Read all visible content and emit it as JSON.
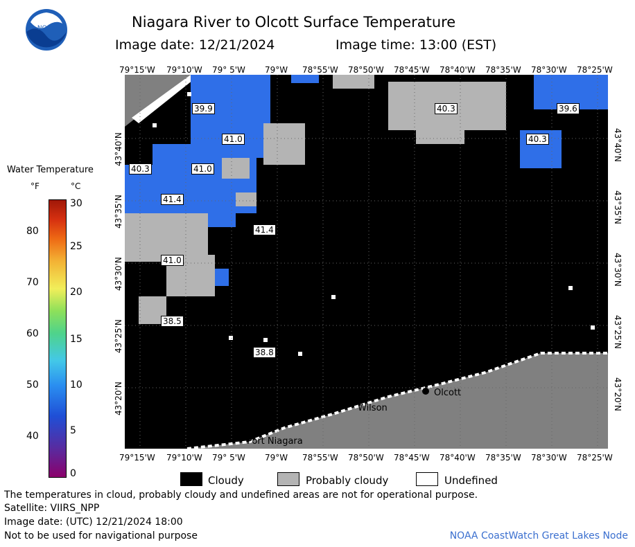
{
  "header": {
    "title": "Niagara River to Olcott Surface Temperature",
    "image_date": "Image date: 12/21/2024",
    "image_time": "Image time: 13:00 (EST)"
  },
  "logo": {
    "text": "NOAA"
  },
  "longitudes": [
    "79°15'W",
    "79°10'W",
    "79° 5'W",
    "79°W",
    "78°55'W",
    "78°50'W",
    "78°45'W",
    "78°40'W",
    "78°35'W",
    "78°30'W",
    "78°25'W"
  ],
  "latitudes": [
    "43°40'N",
    "43°35'N",
    "43°30'N",
    "43°25'N",
    "43°20'N"
  ],
  "legend": {
    "title": "Water Temperature",
    "unit_f": "°F",
    "unit_c": "°C",
    "f_ticks": [
      "80",
      "70",
      "60",
      "50",
      "40"
    ],
    "c_ticks": [
      "30",
      "25",
      "20",
      "15",
      "10",
      "5",
      "0"
    ]
  },
  "temperature_labels": [
    "39.9",
    "41.0",
    "40.3",
    "41.0",
    "41.4",
    "41.4",
    "41.0",
    "38.5",
    "38.8",
    "40.3",
    "40.3",
    "39.6"
  ],
  "places": [
    "Olcott",
    "Wilson",
    "Port Niagara"
  ],
  "key": {
    "cloudy": "Cloudy",
    "probably_cloudy": "Probably cloudy",
    "undefined": "Undefined"
  },
  "footer": {
    "line1": "The temperatures in cloud, probably cloudy and undefined areas are not for operational purpose.",
    "line2": "Satellite: VIIRS_NPP",
    "line3": "Image date: (UTC) 12/21/2024  18:00",
    "line4": "Not to be used for navigational purpose",
    "credit": "NOAA CoastWatch Great Lakes Node"
  },
  "colors": {
    "cloudy": "#000000",
    "probably_cloudy": "#b4b4b4",
    "land": "#808080",
    "water_41": "#2f6fe8"
  }
}
